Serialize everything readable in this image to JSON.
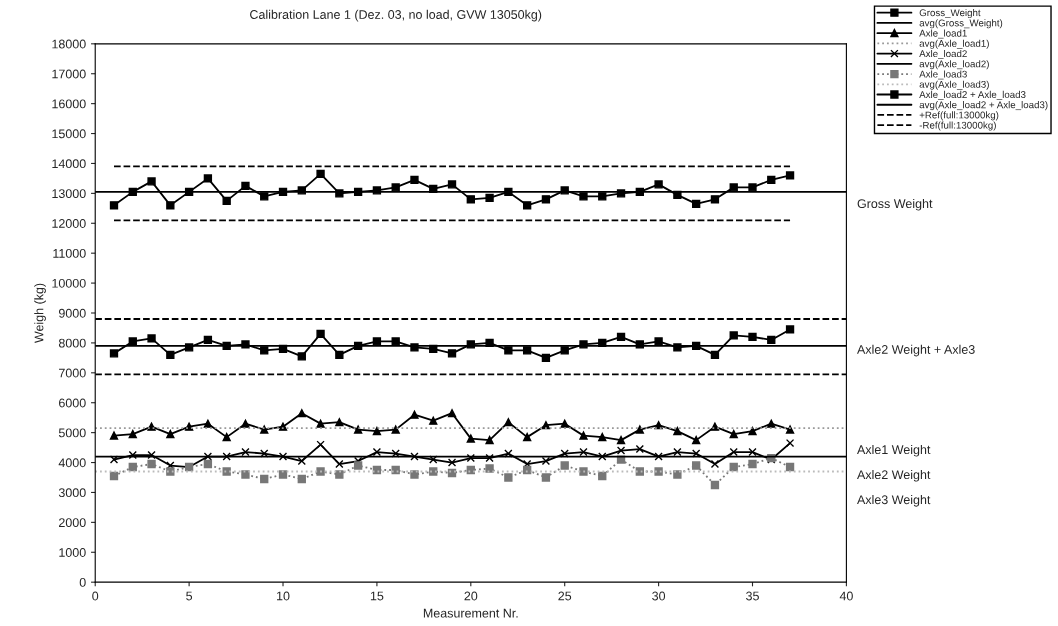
{
  "chart_data": {
    "type": "line",
    "title": "Calibration Lane 1 (Dez. 03, no load, GVW 13050kg)",
    "xlabel": "Measurement Nr.",
    "ylabel": "Weigh (kg)",
    "x": [
      1,
      2,
      3,
      4,
      5,
      6,
      7,
      8,
      9,
      10,
      11,
      12,
      13,
      14,
      15,
      16,
      17,
      18,
      19,
      20,
      21,
      22,
      23,
      24,
      25,
      26,
      27,
      28,
      29,
      30,
      31,
      32,
      33,
      34,
      35,
      36,
      37
    ],
    "xlim": [
      0,
      40
    ],
    "xticks": [
      0,
      5,
      10,
      15,
      20,
      25,
      30,
      35,
      40
    ],
    "ylim": [
      0,
      18000
    ],
    "yticks": [
      0,
      1000,
      2000,
      3000,
      4000,
      5000,
      6000,
      7000,
      8000,
      9000,
      10000,
      11000,
      12000,
      13000,
      14000,
      15000,
      16000,
      17000,
      18000
    ],
    "grid": false,
    "legend": "top right",
    "series": [
      {
        "name": "Gross_Weight",
        "color": "#000000",
        "marker": "square",
        "line_style": "solid",
        "values": [
          12600,
          13050,
          13400,
          12600,
          13050,
          13500,
          12750,
          13250,
          12900,
          13050,
          13100,
          13650,
          13000,
          13050,
          13100,
          13200,
          13450,
          13150,
          13300,
          12800,
          12850,
          13050,
          12600,
          12800,
          13100,
          12900,
          12900,
          13000,
          13050,
          13300,
          12950,
          12650,
          12800,
          13200,
          13200,
          13450,
          13600
        ]
      },
      {
        "name": "Axle_load1",
        "color": "#000000",
        "marker": "triangle",
        "line_style": "solid",
        "values": [
          4900,
          4950,
          5200,
          4950,
          5200,
          5300,
          4850,
          5300,
          5100,
          5200,
          5650,
          5300,
          5350,
          5100,
          5050,
          5100,
          5600,
          5400,
          5650,
          4800,
          4750,
          5350,
          4850,
          5250,
          5300,
          4900,
          4850,
          4750,
          5100,
          5250,
          5050,
          4750,
          5200,
          4950,
          5050,
          5300,
          5100
        ]
      },
      {
        "name": "Axle_load2",
        "color": "#000000",
        "marker": "cross",
        "line_style": "solid",
        "values": [
          4100,
          4250,
          4250,
          3900,
          3850,
          4200,
          4200,
          4350,
          4300,
          4200,
          4050,
          4600,
          3950,
          4050,
          4350,
          4300,
          4200,
          4100,
          4000,
          4150,
          4150,
          4300,
          3950,
          4050,
          4300,
          4350,
          4200,
          4400,
          4450,
          4200,
          4350,
          4300,
          3950,
          4350,
          4350,
          4100,
          4650
        ]
      },
      {
        "name": "Axle_load3",
        "color": "#777777",
        "marker": "square",
        "line_style": "dotted",
        "values": [
          3550,
          3850,
          3950,
          3700,
          3850,
          3950,
          3700,
          3600,
          3450,
          3600,
          3450,
          3700,
          3600,
          3900,
          3750,
          3750,
          3600,
          3700,
          3650,
          3750,
          3800,
          3500,
          3750,
          3500,
          3900,
          3700,
          3550,
          4100,
          3700,
          3700,
          3600,
          3900,
          3250,
          3850,
          3950,
          4150,
          3850
        ]
      },
      {
        "name": "Axle_load2 + Axle_load3",
        "color": "#000000",
        "marker": "square",
        "line_style": "solid",
        "values": [
          7650,
          8050,
          8150,
          7600,
          7850,
          8100,
          7900,
          7950,
          7750,
          7800,
          7550,
          8300,
          7600,
          7900,
          8050,
          8050,
          7850,
          7800,
          7650,
          7950,
          8000,
          7750,
          7750,
          7500,
          7750,
          7950,
          8000,
          8200,
          7950,
          8050,
          7850,
          7900,
          7600,
          8250,
          8200,
          8100,
          8450
        ]
      },
      {
        "name": "+Ref(full:13000kg)",
        "color": "#000000",
        "marker": "none",
        "line_style": "dashed",
        "values": [
          13900,
          13900,
          13900,
          13900,
          13900,
          13900,
          13900,
          13900,
          13900,
          13900,
          13900,
          13900,
          13900,
          13900,
          13900,
          13900,
          13900,
          13900,
          13900,
          13900,
          13900,
          13900,
          13900,
          13900,
          13900,
          13900,
          13900,
          13900,
          13900,
          13900,
          13900,
          13900,
          13900,
          13900,
          13900,
          13900,
          13900
        ]
      },
      {
        "name": "-Ref(full:13000kg)",
        "color": "#000000",
        "marker": "none",
        "line_style": "dashed",
        "values": [
          12100,
          12100,
          12100,
          12100,
          12100,
          12100,
          12100,
          12100,
          12100,
          12100,
          12100,
          12100,
          12100,
          12100,
          12100,
          12100,
          12100,
          12100,
          12100,
          12100,
          12100,
          12100,
          12100,
          12100,
          12100,
          12100,
          12100,
          12100,
          12100,
          12100,
          12100,
          12100,
          12100,
          12100,
          12100,
          12100,
          12100
        ]
      }
    ],
    "ref_lines": [
      {
        "axis": "y",
        "value": 13050,
        "label": "avg(Gross_Weight)",
        "color": "#000000",
        "line_style": "solid"
      },
      {
        "axis": "y",
        "value": 5150,
        "label": "avg(Axle_load1)",
        "color": "#999999",
        "line_style": "dotted"
      },
      {
        "axis": "y",
        "value": 4200,
        "label": "avg(Axle_load2)",
        "color": "#000000",
        "line_style": "solid"
      },
      {
        "axis": "y",
        "value": 3700,
        "label": "avg(Axle_load3)",
        "color": "#bbbbbb",
        "line_style": "dotted"
      },
      {
        "axis": "y",
        "value": 7900,
        "label": "avg(Axle_load2 + Axle_load3)",
        "color": "#000000",
        "line_style": "solid"
      },
      {
        "axis": "y",
        "value": 8800,
        "color": "#000000",
        "line_style": "dashed"
      },
      {
        "axis": "y",
        "value": 6950,
        "color": "#000000",
        "line_style": "dashed"
      }
    ],
    "annotations": [
      "Gross Weight",
      "Axle2 Weight + Axle3",
      "Axle1 Weight",
      "Axle2 Weight",
      "Axle3 Weight"
    ]
  }
}
